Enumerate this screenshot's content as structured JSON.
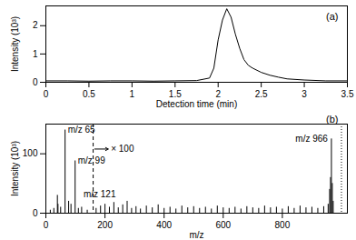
{
  "chart_data": [
    {
      "type": "line",
      "panel_label": "(a)",
      "x_label": "Detection time (min)",
      "y_label": "Intensity (10³)",
      "x": [
        0,
        0.25,
        0.5,
        0.75,
        1.0,
        1.25,
        1.5,
        1.75,
        1.9,
        1.95,
        2.0,
        2.05,
        2.1,
        2.15,
        2.2,
        2.25,
        2.3,
        2.35,
        2.4,
        2.5,
        2.6,
        2.7,
        2.8,
        3.0,
        3.25,
        3.5
      ],
      "values": [
        0.05,
        0.05,
        0.04,
        0.05,
        0.05,
        0.04,
        0.05,
        0.06,
        0.15,
        0.5,
        1.5,
        2.2,
        2.6,
        2.3,
        1.7,
        1.2,
        0.8,
        0.6,
        0.5,
        0.35,
        0.25,
        0.18,
        0.12,
        0.08,
        0.05,
        0.05
      ],
      "color": "#000000",
      "xlim": [
        0,
        3.5
      ],
      "xticks": [
        0,
        0.5,
        1,
        1.5,
        2,
        2.5,
        3,
        3.5
      ],
      "ylim": [
        0,
        2.7
      ],
      "yticks": [
        0,
        1,
        2
      ],
      "grid": false
    },
    {
      "type": "stick",
      "panel_label": "(b)",
      "x_label": "m/z",
      "y_label": "Intensity (10³)",
      "x": [
        15,
        27,
        39,
        41,
        50,
        65,
        77,
        85,
        99,
        110,
        121,
        140,
        170,
        185,
        200,
        215,
        230,
        245,
        260,
        275,
        290,
        305,
        320,
        340,
        360,
        380,
        400,
        420,
        440,
        460,
        480,
        500,
        520,
        540,
        560,
        580,
        600,
        620,
        640,
        660,
        680,
        700,
        720,
        740,
        760,
        780,
        800,
        820,
        840,
        860,
        880,
        900,
        920,
        940,
        955,
        960,
        963,
        966,
        969,
        972
      ],
      "values": [
        5,
        8,
        30,
        15,
        10,
        140,
        20,
        15,
        88,
        8,
        10,
        5,
        8,
        12,
        15,
        10,
        18,
        9,
        14,
        20,
        8,
        11,
        7,
        12,
        9,
        14,
        8,
        10,
        7,
        12,
        9,
        11,
        8,
        10,
        7,
        12,
        9,
        8,
        10,
        7,
        11,
        9,
        8,
        12,
        9,
        10,
        7,
        11,
        8,
        12,
        9,
        10,
        8,
        11,
        15,
        40,
        60,
        125,
        50,
        20
      ],
      "color": "#000000",
      "xlim": [
        0,
        1020
      ],
      "xticks": [
        0,
        200,
        400,
        600,
        800
      ],
      "ylim": [
        0,
        150
      ],
      "yticks": [
        0,
        100
      ],
      "grid": false,
      "annotations": [
        {
          "text": "m/z 65",
          "x": 65
        },
        {
          "text": "m/z 99",
          "x": 99
        },
        {
          "text": "m/z 121",
          "x": 121
        },
        {
          "text": "m/z 966",
          "x": 966
        }
      ],
      "scale_break": {
        "x": 160,
        "label": "× 100",
        "line_style": "dashed"
      },
      "reference_lines": [
        {
          "x": 1000,
          "line_style": "dotted"
        }
      ]
    }
  ]
}
